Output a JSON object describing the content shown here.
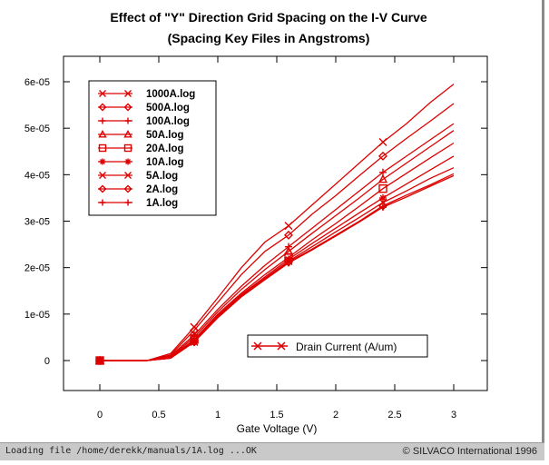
{
  "chart_data": {
    "type": "line",
    "title": "Effect of \"Y\" Direction Grid Spacing on the I-V Curve",
    "subtitle": "(Spacing Key Files in Angstroms)",
    "xlabel": "Gate Voltage (V)",
    "ylabel": "",
    "xlim": [
      -0.3,
      3.05
    ],
    "ylim": [
      -6e-06,
      6.6e-05
    ],
    "x_ticks": [
      0,
      0.5,
      1,
      1.5,
      2,
      2.5,
      3
    ],
    "x_tick_labels": [
      "0",
      "0.5",
      "1",
      "1.5",
      "2",
      "2.5",
      "3"
    ],
    "y_ticks": [
      0,
      1e-05,
      2e-05,
      3e-05,
      4e-05,
      5e-05,
      6e-05
    ],
    "y_tick_labels": [
      "0",
      "1e-05",
      "2e-05",
      "3e-05",
      "4e-05",
      "5e-05",
      "6e-05"
    ],
    "grid": false,
    "legend_position": "top-left",
    "line_color": "#dd0000",
    "x": [
      0,
      0.4,
      0.6,
      0.8,
      1.0,
      1.2,
      1.4,
      1.6,
      1.8,
      2.0,
      2.2,
      2.4,
      2.6,
      2.8,
      3.0
    ],
    "marker_x": [
      0,
      0.8,
      1.6,
      2.4
    ],
    "series": [
      {
        "name": "1000A.log",
        "marker": "x",
        "values": [
          0,
          0,
          1.5e-06,
          7.2e-06,
          1.35e-05,
          2e-05,
          2.55e-05,
          2.9e-05,
          3.35e-05,
          3.8e-05,
          4.25e-05,
          4.7e-05,
          5.1e-05,
          5.55e-05,
          5.95e-05
        ]
      },
      {
        "name": "500A.log",
        "marker": "diamond",
        "values": [
          0,
          0,
          1.2e-06,
          6.5e-06,
          1.25e-05,
          1.85e-05,
          2.35e-05,
          2.7e-05,
          3.15e-05,
          3.55e-05,
          3.98e-05,
          4.4e-05,
          4.78e-05,
          5.15e-05,
          5.53e-05
        ]
      },
      {
        "name": "100A.log",
        "marker": "plus",
        "values": [
          0,
          0,
          1e-06,
          5.5e-06,
          1.1e-05,
          1.6e-05,
          2.05e-05,
          2.45e-05,
          2.85e-05,
          3.25e-05,
          3.65e-05,
          4.05e-05,
          4.4e-05,
          4.75e-05,
          5.1e-05
        ]
      },
      {
        "name": "50A.log",
        "marker": "triangle",
        "values": [
          0,
          0,
          8e-07,
          5e-06,
          1.05e-05,
          1.53e-05,
          1.96e-05,
          2.35e-05,
          2.74e-05,
          3.12e-05,
          3.5e-05,
          3.9e-05,
          4.25e-05,
          4.6e-05,
          4.95e-05
        ]
      },
      {
        "name": "20A.log",
        "marker": "square",
        "values": [
          0,
          0,
          7e-07,
          4.5e-06,
          1e-05,
          1.45e-05,
          1.85e-05,
          2.22e-05,
          2.6e-05,
          2.95e-05,
          3.32e-05,
          3.7e-05,
          4.03e-05,
          4.36e-05,
          4.68e-05
        ]
      },
      {
        "name": "10A.log",
        "marker": "asterisk",
        "values": [
          0,
          0,
          6e-07,
          4.2e-06,
          9.7e-06,
          1.42e-05,
          1.8e-05,
          2.18e-05,
          2.52e-05,
          2.85e-05,
          3.18e-05,
          3.5e-05,
          3.8e-05,
          4.1e-05,
          4.4e-05
        ]
      },
      {
        "name": "5A.log",
        "marker": "x",
        "values": [
          0,
          0,
          5e-07,
          4e-06,
          9.5e-06,
          1.4e-05,
          1.77e-05,
          2.14e-05,
          2.45e-05,
          2.77e-05,
          3.08e-05,
          3.4e-05,
          3.65e-05,
          3.92e-05,
          4.15e-05
        ]
      },
      {
        "name": "2A.log",
        "marker": "diamond",
        "values": [
          0,
          0,
          5e-07,
          4e-06,
          9.3e-06,
          1.38e-05,
          1.75e-05,
          2.12e-05,
          2.4e-05,
          2.7e-05,
          3e-05,
          3.33e-05,
          3.56e-05,
          3.78e-05,
          4.02e-05
        ]
      },
      {
        "name": "1A.log",
        "marker": "plus",
        "values": [
          0,
          0,
          5e-07,
          4e-06,
          9.2e-06,
          1.37e-05,
          1.74e-05,
          2.1e-05,
          2.38e-05,
          2.68e-05,
          2.98e-05,
          3.3e-05,
          3.52e-05,
          3.75e-05,
          3.98e-05
        ]
      }
    ],
    "annotation": "Drain Current (A/um)"
  },
  "status_bar": {
    "message": "Loading file /home/derekk/manuals/1A.log ...OK",
    "copyright": "© SILVACO International 1996"
  }
}
